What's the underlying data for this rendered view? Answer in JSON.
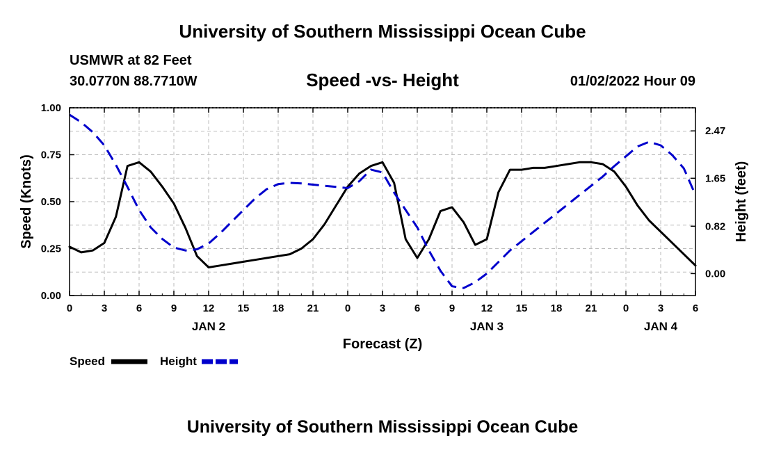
{
  "page": {
    "title_top": "University of Southern Mississippi Ocean Cube",
    "title_bottom": "University of Southern Mississippi Ocean Cube",
    "station": "USMWR at 82 Feet",
    "coords": "30.0770N  88.7710W",
    "chart_title": "Speed -vs- Height",
    "datetime": "01/02/2022 Hour 09"
  },
  "colors": {
    "speed": "#000000",
    "height": "#0000cc",
    "grid": "#bbbbbb"
  },
  "chart_data": {
    "type": "line",
    "title": "Speed -vs- Height",
    "xlabel": "Forecast (Z)",
    "ylabel": "Speed (Knots)",
    "y2label": "Height (feet)",
    "xlim": [
      0,
      54
    ],
    "ylim": [
      0,
      1.0
    ],
    "y2lim": [
      -0.38,
      2.87
    ],
    "x_ticks": [
      0,
      3,
      6,
      9,
      12,
      15,
      18,
      21,
      24,
      27,
      30,
      33,
      36,
      39,
      42,
      45,
      48,
      51,
      54
    ],
    "x_tick_labels": [
      "0",
      "3",
      "6",
      "9",
      "12",
      "15",
      "18",
      "21",
      "0",
      "3",
      "6",
      "9",
      "12",
      "15",
      "18",
      "21",
      "0",
      "3",
      "6"
    ],
    "date_labels": [
      {
        "x": 12,
        "label": "JAN 2"
      },
      {
        "x": 36,
        "label": "JAN 3"
      },
      {
        "x": 51,
        "label": "JAN 4"
      }
    ],
    "y_ticks": [
      0.0,
      0.25,
      0.5,
      0.75,
      1.0
    ],
    "y_tick_labels": [
      "0.00",
      "0.25",
      "0.50",
      "0.75",
      "1.00"
    ],
    "y2_ticks": [
      0.0,
      0.82,
      1.65,
      2.47
    ],
    "y2_tick_labels": [
      "0.00",
      "0.82",
      "1.65",
      "2.47"
    ],
    "grid": true,
    "legend_position": "bottom-left",
    "series": [
      {
        "name": "Speed",
        "axis": "left",
        "style": "solid",
        "x": [
          0,
          1,
          2,
          3,
          4,
          5,
          6,
          7,
          8,
          9,
          10,
          11,
          12,
          13,
          14,
          15,
          16,
          17,
          18,
          19,
          20,
          21,
          22,
          23,
          24,
          25,
          26,
          27,
          28,
          29,
          30,
          31,
          32,
          33,
          34,
          35,
          36,
          37,
          38,
          39,
          40,
          41,
          42,
          43,
          44,
          45,
          46,
          47,
          48,
          49,
          50,
          51,
          52,
          53,
          54
        ],
        "values": [
          0.26,
          0.23,
          0.24,
          0.28,
          0.42,
          0.69,
          0.71,
          0.66,
          0.58,
          0.49,
          0.36,
          0.21,
          0.15,
          0.16,
          0.17,
          0.18,
          0.19,
          0.2,
          0.21,
          0.22,
          0.25,
          0.3,
          0.38,
          0.48,
          0.58,
          0.65,
          0.69,
          0.71,
          0.6,
          0.3,
          0.2,
          0.3,
          0.45,
          0.47,
          0.39,
          0.27,
          0.3,
          0.55,
          0.67,
          0.67,
          0.68,
          0.68,
          0.69,
          0.7,
          0.71,
          0.71,
          0.7,
          0.66,
          0.58,
          0.48,
          0.4,
          0.34,
          0.28,
          0.22,
          0.16
        ]
      },
      {
        "name": "Height",
        "axis": "right",
        "style": "dashed",
        "x": [
          0,
          1,
          2,
          3,
          4,
          5,
          6,
          7,
          8,
          9,
          10,
          11,
          12,
          13,
          14,
          15,
          16,
          17,
          18,
          19,
          20,
          21,
          22,
          23,
          24,
          25,
          26,
          27,
          28,
          29,
          30,
          31,
          32,
          33,
          34,
          35,
          36,
          37,
          38,
          39,
          40,
          41,
          42,
          43,
          44,
          45,
          46,
          47,
          48,
          49,
          50,
          51,
          52,
          53,
          54
        ],
        "values": [
          2.75,
          2.62,
          2.45,
          2.22,
          1.88,
          1.5,
          1.1,
          0.8,
          0.6,
          0.45,
          0.4,
          0.42,
          0.52,
          0.7,
          0.9,
          1.1,
          1.3,
          1.46,
          1.55,
          1.57,
          1.56,
          1.54,
          1.52,
          1.5,
          1.48,
          1.6,
          1.8,
          1.75,
          1.4,
          1.1,
          0.8,
          0.4,
          0.05,
          -0.22,
          -0.25,
          -0.15,
          0.0,
          0.2,
          0.4,
          0.56,
          0.72,
          0.88,
          1.04,
          1.2,
          1.36,
          1.52,
          1.68,
          1.86,
          2.03,
          2.2,
          2.28,
          2.22,
          2.05,
          1.82,
          1.36
        ]
      }
    ]
  }
}
